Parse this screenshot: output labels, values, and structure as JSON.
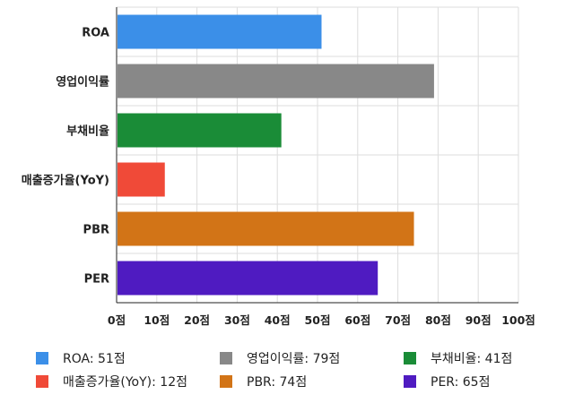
{
  "chart_data": {
    "type": "bar",
    "orientation": "horizontal",
    "categories": [
      "ROA",
      "영업이익률",
      "부채비율",
      "매출증가율(YoY)",
      "PBR",
      "PER"
    ],
    "values": [
      51,
      79,
      41,
      12,
      74,
      65
    ],
    "colors": [
      "#3b8fe8",
      "#888888",
      "#1a8c37",
      "#f04a38",
      "#d27417",
      "#4f1bc1"
    ],
    "xlim": [
      0,
      100
    ],
    "xticks": [
      "0점",
      "10점",
      "20점",
      "30점",
      "40점",
      "50점",
      "60점",
      "70점",
      "80점",
      "90점",
      "100점"
    ],
    "grid": true,
    "legend": [
      "ROA: 51점",
      "영업이익률: 79점",
      "부채비율: 41점",
      "매출증가율(YoY): 12점",
      "PBR: 74점",
      "PER: 65점"
    ],
    "legend_placement": "bottom"
  }
}
